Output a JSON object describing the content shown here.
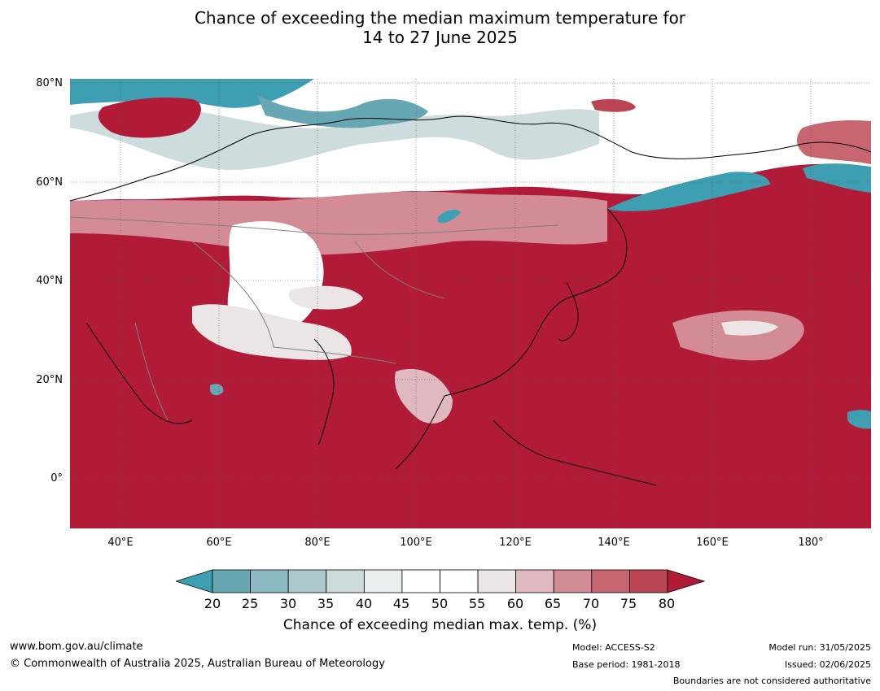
{
  "title": {
    "line1": "Chance of exceeding the median maximum temperature for",
    "line2": "14 to 27 June 2025"
  },
  "axes": {
    "lat_labels": [
      "80°N",
      "60°N",
      "40°N",
      "20°N",
      "0°"
    ],
    "lon_labels": [
      "40°E",
      "60°E",
      "80°E",
      "100°E",
      "120°E",
      "140°E",
      "160°E",
      "180°"
    ]
  },
  "colors": {
    "below_20": "#3f9fb2",
    "bins": [
      "#67a7b4",
      "#8db9c5",
      "#adc8cd",
      "#cfdcde",
      "#e9eff1",
      "#ffffff",
      "#ffffff",
      "#ebe5e6",
      "#e0b8bf",
      "#d38b95",
      "#c76671",
      "#bb4452"
    ],
    "above_80": "#b21b38",
    "land_outline": "#000000",
    "border": "#808080"
  },
  "colorbar": {
    "ticks": [
      "20",
      "25",
      "30",
      "35",
      "40",
      "45",
      "50",
      "55",
      "60",
      "65",
      "70",
      "75",
      "80"
    ],
    "label": "Chance of exceeding median max. temp. (%)"
  },
  "footer": {
    "website": "www.bom.gov.au/climate",
    "copyright": "© Commonwealth of Australia 2025, Australian Bureau of Meteorology",
    "model": "Model: ACCESS-S2",
    "base_period": "Base period: 1981-2018",
    "model_run": "Model run: 31/05/2025",
    "issued": "Issued: 02/06/2025",
    "disclaimer": "Boundaries are not considered authoritative"
  }
}
